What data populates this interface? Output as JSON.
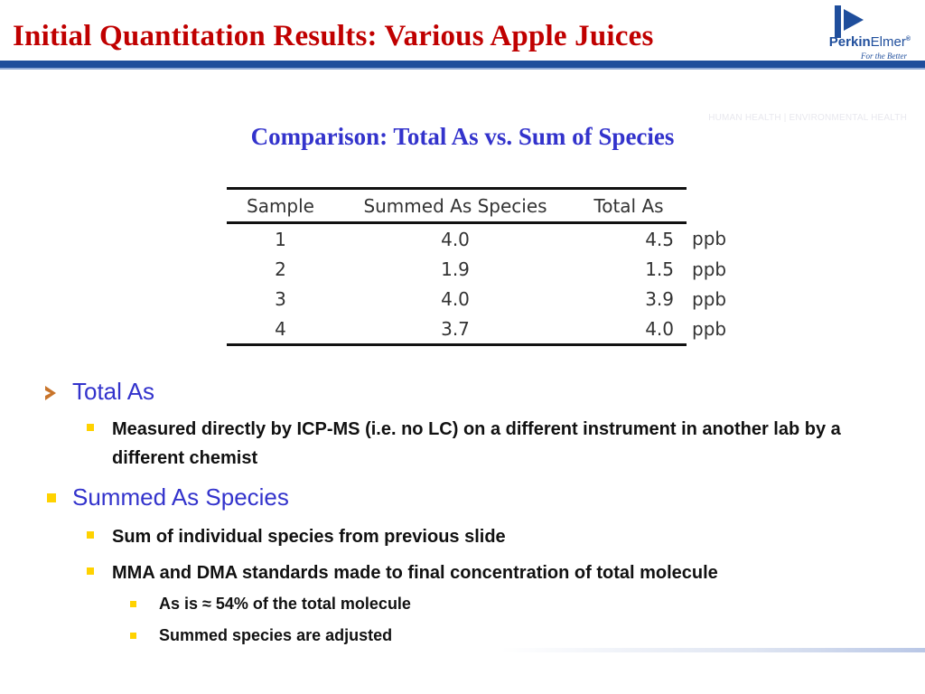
{
  "slide": {
    "title": "Initial Quantitation Results:  Various Apple Juices",
    "header_tag": "HUMAN HEALTH  |  ENVIRONMENTAL HEALTH",
    "subtitle": "Comparison:  Total As vs. Sum of Species"
  },
  "logo": {
    "name_bold": "Perkin",
    "name_regular": "Elmer",
    "trademark": "®",
    "tagline": "For the Better",
    "color": "#1f4e9c"
  },
  "colors": {
    "title": "#c00000",
    "subtitle": "#3333cc",
    "bar": "#1f4e9c",
    "bullet_square": "#ffd200",
    "bullet_arrow": "#c8742a"
  },
  "table": {
    "headers": [
      "Sample",
      "Summed As Species",
      "Total As"
    ],
    "unit": "ppb",
    "rows": [
      {
        "sample": "1",
        "summed": "4.0",
        "total": "4.5"
      },
      {
        "sample": "2",
        "summed": "1.9",
        "total": "1.5"
      },
      {
        "sample": "3",
        "summed": "4.0",
        "total": "3.9"
      },
      {
        "sample": "4",
        "summed": "3.7",
        "total": "4.0"
      }
    ]
  },
  "bullets": {
    "total_as": {
      "label": "Total As",
      "items": [
        "Measured directly by ICP-MS (i.e. no LC) on a different instrument in another lab by a different chemist"
      ]
    },
    "summed": {
      "label": "Summed As Species",
      "item1": "Sum of individual species from previous slide",
      "item2": "MMA and DMA standards made to final concentration of total molecule",
      "sub1": "As is ≈ 54% of the total molecule",
      "sub2": "Summed species are adjusted"
    }
  }
}
